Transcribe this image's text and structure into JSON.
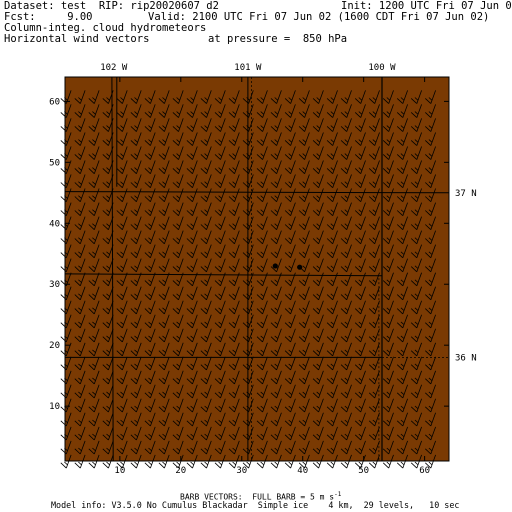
{
  "header": {
    "dataset": "Dataset: test  RIP: rip20020607 d2",
    "init": "Init: 1200 UTC Fri 07 Jun 02",
    "fcst": "Fcst:     9.00",
    "valid": "Valid: 2100 UTC Fri 07 Jun 02 (1600 CDT Fri 07 Jun 02)",
    "field1": "Column-integ. cloud hydrometeors",
    "field2": "Horizontal wind vectors",
    "pressure": "at pressure =  850 hPa"
  },
  "map": {
    "background_color": "#7a3a03",
    "grid_range_x": [
      1,
      64
    ],
    "grid_range_y": [
      1,
      64
    ],
    "x_ticks": [
      "10",
      "20",
      "30",
      "40",
      "50",
      "60"
    ],
    "x_tick_values": [
      10,
      20,
      30,
      40,
      50,
      60
    ],
    "y_ticks": [
      "10",
      "20",
      "30",
      "40",
      "50",
      "60"
    ],
    "y_tick_values": [
      10,
      20,
      30,
      40,
      50,
      60
    ],
    "longitude_labels": [
      {
        "label": "102 W",
        "grid_x": 9
      },
      {
        "label": "101 W",
        "grid_x": 31
      },
      {
        "label": "100 W",
        "grid_x": 53
      }
    ],
    "latitude_labels": [
      {
        "label": "37 N",
        "grid_y": 45
      },
      {
        "label": "36 N",
        "grid_y": 18
      }
    ],
    "points": [
      {
        "grid_x": 35.5,
        "grid_y": 33.0
      },
      {
        "grid_x": 39.5,
        "grid_y": 32.8
      }
    ],
    "wind_barbs": {
      "spacing": 2.3,
      "direction_deg": 200,
      "full_barbs": 1,
      "half_barbs": 1
    }
  },
  "footer": {
    "barb_legend": "BARB VECTORS:  FULL BARB = 5 m s",
    "barb_legend_sup": "-1",
    "model_info": "Model info: V3.5.0 No Cumulus Blackadar  Simple ice    4 km,  29 levels,   10 sec"
  }
}
